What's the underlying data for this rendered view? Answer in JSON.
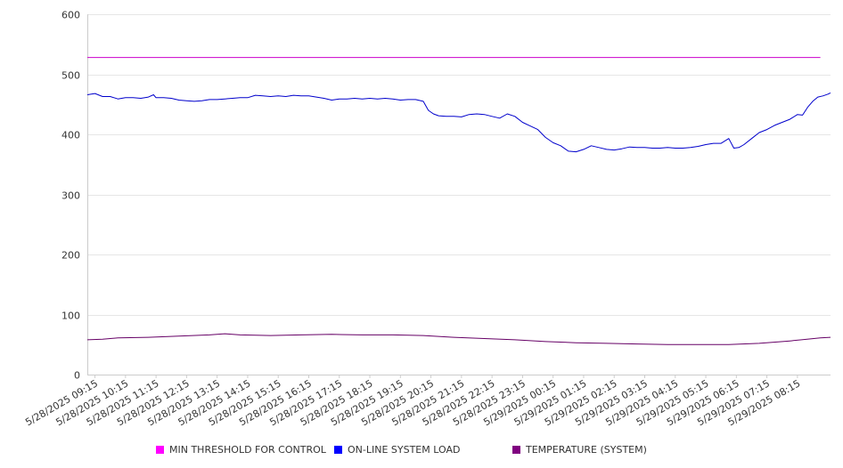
{
  "chart_data": {
    "type": "line",
    "title": "",
    "xlabel": "",
    "ylabel": "",
    "ylim": [
      0,
      600
    ],
    "yticks": [
      0,
      100,
      200,
      300,
      400,
      500,
      600
    ],
    "grid": true,
    "legend_position": "bottom",
    "x_tick_labels": [
      "5/28/2025 09:15",
      "5/28/2025 10:15",
      "5/28/2025 11:15",
      "5/28/2025 12:15",
      "5/28/2025 13:15",
      "5/28/2025 14:15",
      "5/28/2025 15:15",
      "5/28/2025 16:15",
      "5/28/2025 17:15",
      "5/28/2025 18:15",
      "5/28/2025 19:15",
      "5/28/2025 20:15",
      "5/28/2025 21:15",
      "5/28/2025 22:15",
      "5/28/2025 23:15",
      "5/29/2025 00:15",
      "5/29/2025 01:15",
      "5/29/2025 02:15",
      "5/29/2025 03:15",
      "5/29/2025 04:15",
      "5/29/2025 05:15",
      "5/29/2025 06:15",
      "5/29/2025 07:15",
      "5/29/2025 08:15"
    ],
    "series": [
      {
        "name": "MIN THRESHOLD FOR CONTROL",
        "color": "#CC00CC",
        "legend_color": "#FF00FF",
        "points": [
          [
            "5/28/2025 09:00",
            528
          ],
          [
            "5/29/2025 09:00",
            528
          ]
        ]
      },
      {
        "name": "ON-LINE SYSTEM LOAD",
        "color": "#0000CC",
        "legend_color": "#0000FF",
        "points": [
          [
            "5/28/2025 09:00",
            466
          ],
          [
            "5/28/2025 09:15",
            468
          ],
          [
            "5/28/2025 09:30",
            463
          ],
          [
            "5/28/2025 09:45",
            463
          ],
          [
            "5/28/2025 10:00",
            459
          ],
          [
            "5/28/2025 10:15",
            461
          ],
          [
            "5/28/2025 10:30",
            461
          ],
          [
            "5/28/2025 10:45",
            460
          ],
          [
            "5/28/2025 11:00",
            462
          ],
          [
            "5/28/2025 11:10",
            466
          ],
          [
            "5/28/2025 11:15",
            461
          ],
          [
            "5/28/2025 11:30",
            461
          ],
          [
            "5/28/2025 11:45",
            460
          ],
          [
            "5/28/2025 12:00",
            457
          ],
          [
            "5/28/2025 12:15",
            456
          ],
          [
            "5/28/2025 12:30",
            455
          ],
          [
            "5/28/2025 12:45",
            456
          ],
          [
            "5/28/2025 13:00",
            458
          ],
          [
            "5/28/2025 13:15",
            458
          ],
          [
            "5/28/2025 13:30",
            459
          ],
          [
            "5/28/2025 13:45",
            460
          ],
          [
            "5/28/2025 14:00",
            461
          ],
          [
            "5/28/2025 14:15",
            461
          ],
          [
            "5/28/2025 14:30",
            465
          ],
          [
            "5/28/2025 14:45",
            464
          ],
          [
            "5/28/2025 15:00",
            463
          ],
          [
            "5/28/2025 15:15",
            464
          ],
          [
            "5/28/2025 15:30",
            463
          ],
          [
            "5/28/2025 15:45",
            465
          ],
          [
            "5/28/2025 16:00",
            464
          ],
          [
            "5/28/2025 16:15",
            464
          ],
          [
            "5/28/2025 16:30",
            462
          ],
          [
            "5/28/2025 16:45",
            460
          ],
          [
            "5/28/2025 17:00",
            457
          ],
          [
            "5/28/2025 17:15",
            459
          ],
          [
            "5/28/2025 17:30",
            459
          ],
          [
            "5/28/2025 17:45",
            460
          ],
          [
            "5/28/2025 18:00",
            459
          ],
          [
            "5/28/2025 18:15",
            460
          ],
          [
            "5/28/2025 18:30",
            459
          ],
          [
            "5/28/2025 18:45",
            460
          ],
          [
            "5/28/2025 19:00",
            459
          ],
          [
            "5/28/2025 19:15",
            457
          ],
          [
            "5/28/2025 19:30",
            458
          ],
          [
            "5/28/2025 19:45",
            458
          ],
          [
            "5/28/2025 20:00",
            455
          ],
          [
            "5/28/2025 20:10",
            440
          ],
          [
            "5/28/2025 20:20",
            434
          ],
          [
            "5/28/2025 20:30",
            431
          ],
          [
            "5/28/2025 20:45",
            430
          ],
          [
            "5/28/2025 21:00",
            430
          ],
          [
            "5/28/2025 21:15",
            429
          ],
          [
            "5/28/2025 21:30",
            433
          ],
          [
            "5/28/2025 21:45",
            434
          ],
          [
            "5/28/2025 22:00",
            433
          ],
          [
            "5/28/2025 22:15",
            430
          ],
          [
            "5/28/2025 22:30",
            427
          ],
          [
            "5/28/2025 22:45",
            434
          ],
          [
            "5/28/2025 23:00",
            430
          ],
          [
            "5/28/2025 23:15",
            420
          ],
          [
            "5/28/2025 23:30",
            414
          ],
          [
            "5/28/2025 23:45",
            408
          ],
          [
            "5/29/2025 00:00",
            395
          ],
          [
            "5/29/2025 00:15",
            386
          ],
          [
            "5/29/2025 00:30",
            381
          ],
          [
            "5/29/2025 00:45",
            372
          ],
          [
            "5/29/2025 01:00",
            371
          ],
          [
            "5/29/2025 01:15",
            375
          ],
          [
            "5/29/2025 01:30",
            381
          ],
          [
            "5/29/2025 01:45",
            378
          ],
          [
            "5/29/2025 02:00",
            375
          ],
          [
            "5/29/2025 02:15",
            374
          ],
          [
            "5/29/2025 02:30",
            376
          ],
          [
            "5/29/2025 02:45",
            379
          ],
          [
            "5/29/2025 03:00",
            378
          ],
          [
            "5/29/2025 03:15",
            378
          ],
          [
            "5/29/2025 03:30",
            377
          ],
          [
            "5/29/2025 03:45",
            377
          ],
          [
            "5/29/2025 04:00",
            378
          ],
          [
            "5/29/2025 04:15",
            377
          ],
          [
            "5/29/2025 04:30",
            377
          ],
          [
            "5/29/2025 04:45",
            378
          ],
          [
            "5/29/2025 05:00",
            380
          ],
          [
            "5/29/2025 05:15",
            383
          ],
          [
            "5/29/2025 05:30",
            385
          ],
          [
            "5/29/2025 05:45",
            385
          ],
          [
            "5/29/2025 06:00",
            393
          ],
          [
            "5/29/2025 06:10",
            377
          ],
          [
            "5/29/2025 06:20",
            378
          ],
          [
            "5/29/2025 06:30",
            383
          ],
          [
            "5/29/2025 06:45",
            393
          ],
          [
            "5/29/2025 07:00",
            403
          ],
          [
            "5/29/2025 07:15",
            408
          ],
          [
            "5/29/2025 07:30",
            415
          ],
          [
            "5/29/2025 07:45",
            420
          ],
          [
            "5/29/2025 08:00",
            425
          ],
          [
            "5/29/2025 08:15",
            433
          ],
          [
            "5/29/2025 08:25",
            432
          ],
          [
            "5/29/2025 08:35",
            445
          ],
          [
            "5/29/2025 08:45",
            455
          ],
          [
            "5/29/2025 08:55",
            462
          ],
          [
            "5/29/2025 09:05",
            464
          ],
          [
            "5/29/2025 09:15",
            467
          ],
          [
            "5/29/2025 09:20",
            469
          ]
        ]
      },
      {
        "name": "TEMPERATURE (SYSTEM)",
        "color": "#660066",
        "legend_color": "#800080",
        "points": [
          [
            "5/28/2025 09:00",
            58
          ],
          [
            "5/28/2025 09:30",
            59
          ],
          [
            "5/28/2025 10:00",
            61
          ],
          [
            "5/28/2025 11:00",
            62
          ],
          [
            "5/28/2025 12:00",
            64
          ],
          [
            "5/28/2025 13:00",
            66
          ],
          [
            "5/28/2025 13:30",
            68
          ],
          [
            "5/28/2025 14:00",
            66
          ],
          [
            "5/28/2025 15:00",
            65
          ],
          [
            "5/28/2025 16:00",
            66
          ],
          [
            "5/28/2025 17:00",
            67
          ],
          [
            "5/28/2025 18:00",
            66
          ],
          [
            "5/28/2025 19:00",
            66
          ],
          [
            "5/28/2025 20:00",
            65
          ],
          [
            "5/28/2025 21:00",
            62
          ],
          [
            "5/28/2025 22:00",
            60
          ],
          [
            "5/28/2025 23:00",
            58
          ],
          [
            "5/29/2025 00:00",
            55
          ],
          [
            "5/29/2025 01:00",
            53
          ],
          [
            "5/29/2025 02:00",
            52
          ],
          [
            "5/29/2025 03:00",
            51
          ],
          [
            "5/29/2025 04:00",
            50
          ],
          [
            "5/29/2025 05:00",
            50
          ],
          [
            "5/29/2025 06:00",
            50
          ],
          [
            "5/29/2025 07:00",
            52
          ],
          [
            "5/29/2025 08:00",
            56
          ],
          [
            "5/29/2025 09:00",
            61
          ],
          [
            "5/29/2025 09:20",
            62
          ]
        ]
      }
    ]
  }
}
